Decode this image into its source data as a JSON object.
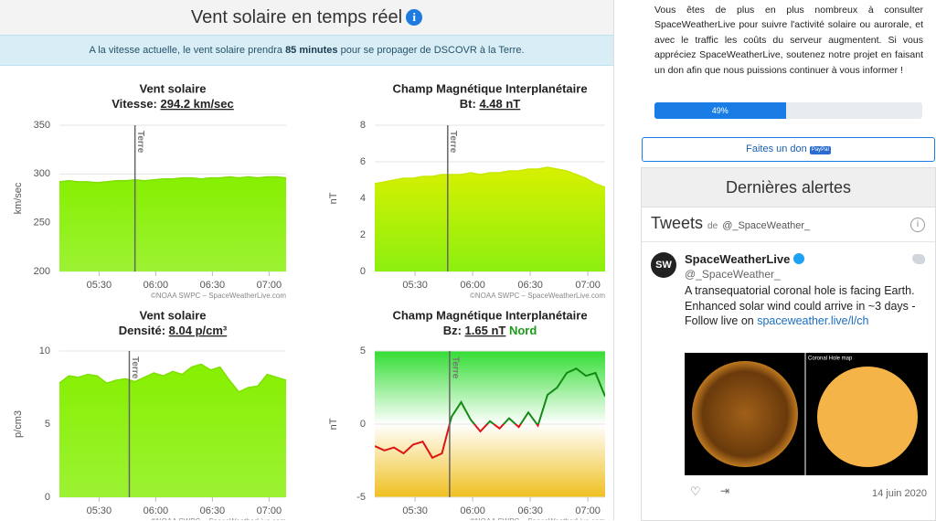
{
  "header": {
    "title": "Vent solaire en temps réel"
  },
  "banner": {
    "before": "A la vitesse actuelle, le vent solaire prendra",
    "highlight": "85 minutes",
    "after": "pour se propager de DSCOVR à la Terre."
  },
  "chart_data": [
    {
      "type": "area",
      "title": "Vent solaire",
      "subtitle_label": "Vitesse:",
      "subtitle_value": "294.2 km/sec",
      "y_label": "km/sec",
      "x": [
        309,
        314,
        319,
        324,
        329,
        334,
        339,
        344,
        349,
        354,
        359,
        364,
        369,
        374,
        379,
        384,
        389,
        394,
        399,
        404,
        409,
        414,
        419,
        424,
        429
      ],
      "values": [
        292,
        293,
        292,
        292,
        291,
        292,
        293,
        293,
        294,
        293,
        294,
        295,
        295,
        296,
        296,
        295,
        296,
        296,
        297,
        296,
        297,
        296,
        297,
        297,
        296
      ],
      "xlim": [
        309,
        429
      ],
      "xticks": [
        {
          "value": 330,
          "label": "05:30"
        },
        {
          "value": 360,
          "label": "06:00"
        },
        {
          "value": 390,
          "label": "06:30"
        },
        {
          "value": 420,
          "label": "07:00"
        }
      ],
      "ylim": [
        200,
        350
      ],
      "yticks": [
        200,
        250,
        300,
        350
      ],
      "grid": true,
      "color": "#7ee000",
      "fill_top": "#86f000",
      "fill_bottom": "#9cf233",
      "annotation": {
        "label": "Terre",
        "x": 349
      },
      "credit": "©NOAA SWPC – SpaceWeatherLive.com"
    },
    {
      "type": "area",
      "title": "Champ Magnétique Interplanétaire",
      "subtitle_label": "Bt:",
      "subtitle_value": "4.48 nT",
      "y_label": "nT",
      "x": [
        309,
        314,
        319,
        324,
        329,
        334,
        339,
        344,
        349,
        354,
        359,
        364,
        369,
        374,
        379,
        384,
        389,
        394,
        399,
        404,
        409,
        414,
        419,
        424,
        429
      ],
      "values": [
        4.8,
        4.9,
        5.0,
        5.1,
        5.1,
        5.2,
        5.2,
        5.3,
        5.3,
        5.3,
        5.4,
        5.3,
        5.4,
        5.4,
        5.5,
        5.5,
        5.6,
        5.6,
        5.7,
        5.6,
        5.5,
        5.3,
        5.1,
        4.8,
        4.6
      ],
      "xlim": [
        309,
        429
      ],
      "xticks": [
        {
          "value": 330,
          "label": "05:30"
        },
        {
          "value": 360,
          "label": "06:00"
        },
        {
          "value": 390,
          "label": "06:30"
        },
        {
          "value": 420,
          "label": "07:00"
        }
      ],
      "ylim": [
        0,
        8
      ],
      "yticks": [
        0,
        2,
        4,
        6,
        8
      ],
      "grid": true,
      "color": "#c8e800",
      "fill_top": "#d8f000",
      "fill_bottom": "#8cef10",
      "annotation": {
        "label": "Terre",
        "x": 347
      },
      "credit": "©NOAA SWPC – SpaceWeatherLive.com"
    },
    {
      "type": "area",
      "title": "Vent solaire",
      "subtitle_label": "Densité:",
      "subtitle_value": "8.04 p/cm³",
      "y_label": "p/cm3",
      "x": [
        309,
        314,
        319,
        324,
        329,
        334,
        339,
        344,
        349,
        354,
        359,
        364,
        369,
        374,
        379,
        384,
        389,
        394,
        399,
        404,
        409,
        414,
        419,
        424,
        429
      ],
      "values": [
        7.8,
        8.3,
        8.2,
        8.4,
        8.3,
        7.8,
        8.0,
        8.1,
        7.9,
        8.2,
        8.5,
        8.3,
        8.6,
        8.4,
        8.9,
        9.1,
        8.7,
        8.9,
        8.0,
        7.2,
        7.5,
        7.6,
        8.4,
        8.2,
        8.0
      ],
      "xlim": [
        309,
        429
      ],
      "xticks": [
        {
          "value": 330,
          "label": "05:30"
        },
        {
          "value": 360,
          "label": "06:00"
        },
        {
          "value": 390,
          "label": "06:30"
        },
        {
          "value": 420,
          "label": "07:00"
        }
      ],
      "ylim": [
        0,
        10
      ],
      "yticks": [
        0,
        5,
        10
      ],
      "grid": true,
      "color": "#7ee000",
      "fill_top": "#86f000",
      "fill_bottom": "#9cf233",
      "annotation": {
        "label": "Terre",
        "x": 346
      },
      "credit": "©NOAA SWPC – SpaceWeatherLive.com"
    },
    {
      "type": "line",
      "title": "Champ Magnétique Interplanétaire",
      "subtitle_label": "Bz:",
      "subtitle_value": "1.65 nT",
      "status": "Nord",
      "y_label": "nT",
      "x": [
        309,
        314,
        319,
        324,
        329,
        334,
        339,
        344,
        349,
        354,
        359,
        364,
        369,
        374,
        379,
        384,
        389,
        394,
        399,
        404,
        409,
        414,
        419,
        424,
        429
      ],
      "values": [
        -1.5,
        -1.8,
        -1.6,
        -2.0,
        -1.4,
        -1.2,
        -2.3,
        -2.0,
        0.5,
        1.5,
        0.3,
        -0.5,
        0.2,
        -0.3,
        0.4,
        -0.2,
        0.8,
        -0.1,
        2.0,
        2.5,
        3.5,
        3.8,
        3.3,
        3.5,
        1.9
      ],
      "xlim": [
        309,
        429
      ],
      "xticks": [
        {
          "value": 330,
          "label": "05:30"
        },
        {
          "value": 360,
          "label": "06:00"
        },
        {
          "value": 390,
          "label": "06:30"
        },
        {
          "value": 420,
          "label": "07:00"
        }
      ],
      "ylim": [
        -5,
        5
      ],
      "yticks": [
        -5,
        0,
        5
      ],
      "grid": true,
      "color_positive": "#138a13",
      "color_negative": "#dd1414",
      "background_colors": [
        "#33dd33",
        "#ffffff",
        "#f0c020"
      ],
      "annotation": {
        "label": "Terre",
        "x": 348
      },
      "credit": "©NOAA SWPC – SpaceWeatherLive.com"
    }
  ],
  "donation": {
    "text": "Vous êtes de plus en plus nombreux à consulter SpaceWeatherLive pour suivre l'activité solaire ou aurorale, et avec le traffic les coûts du serveur augmentent. Si vous appréciez SpaceWeatherLive, soutenez notre projet en faisant un don afin que nous puissions continuer à vous informer !",
    "progress": {
      "value": 49,
      "label": "49%"
    },
    "button": "Faites un don",
    "badge": "PayPal"
  },
  "alerts": {
    "title": "Dernières alertes"
  },
  "tweets": {
    "title": "Tweets",
    "by": "de",
    "handle": "@_SpaceWeather_",
    "tweet": {
      "author": "SpaceWeatherLive",
      "handle": "@_SpaceWeather_",
      "avatar": "SW",
      "text": "A transequatorial coronal hole is facing Earth. Enhanced solar wind could arrive in ~3 days - Follow live on",
      "link": "spaceweather.live/l/ch",
      "image_label": "Coronal Hole map",
      "date": "14 juin 2020"
    }
  }
}
